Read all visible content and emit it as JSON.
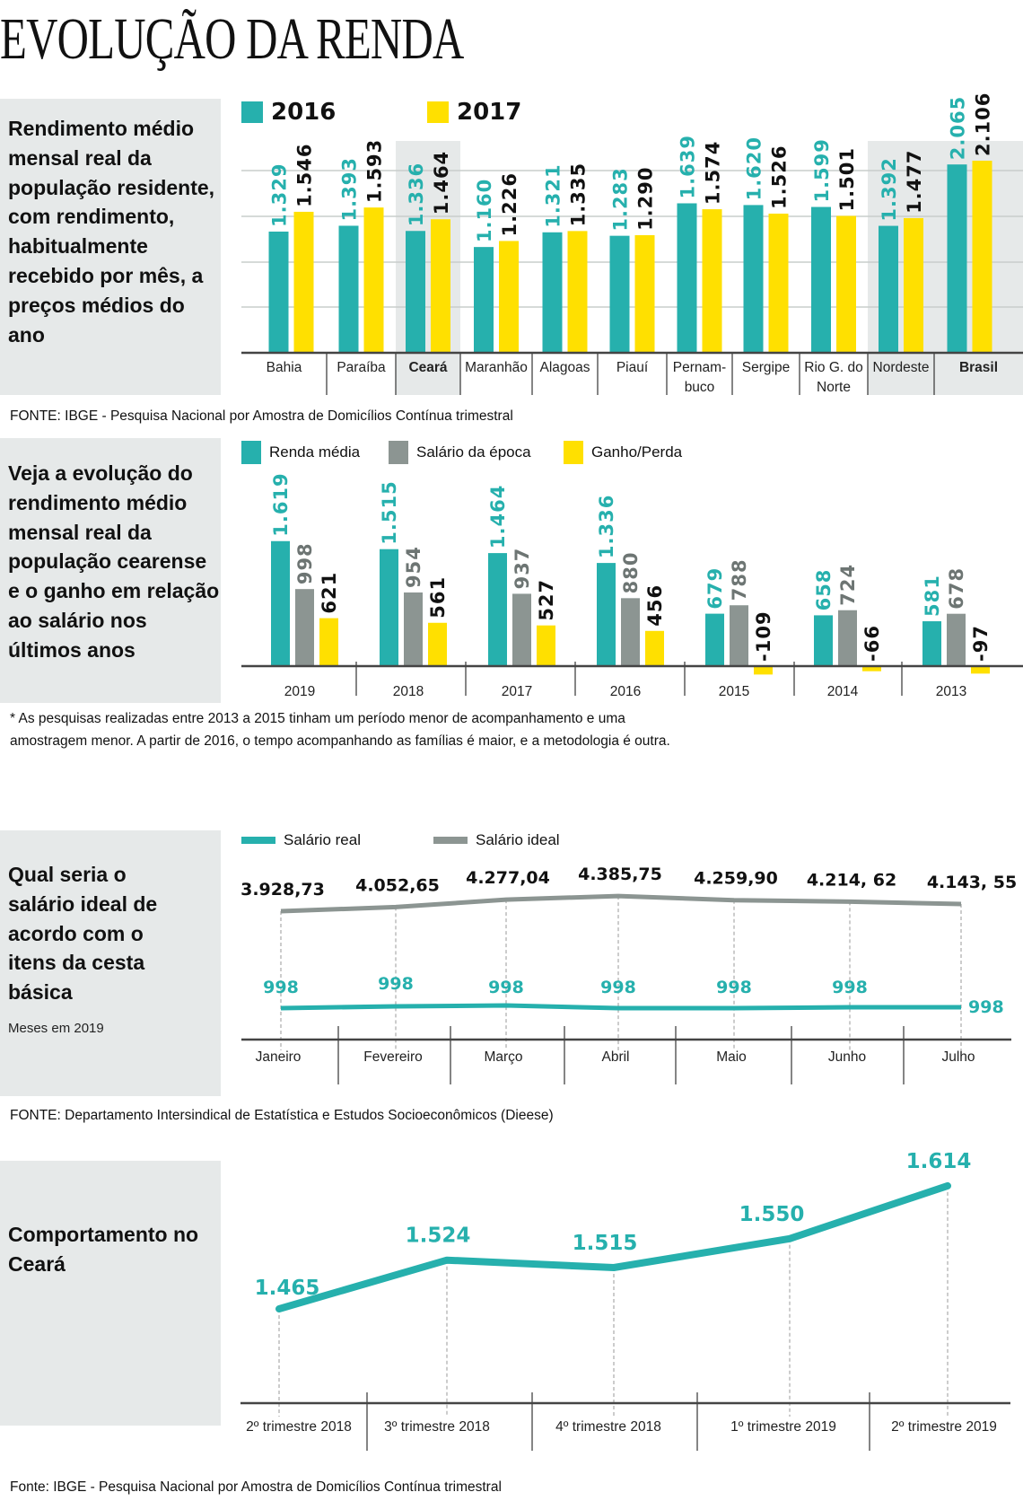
{
  "title": "EVOLUÇÃO DA RENDA",
  "colors": {
    "teal": "#26b0ad",
    "yellow": "#ffe000",
    "gray": "#8c9592",
    "panel": "#e6e9e9",
    "highlight": "#e6e9e9"
  },
  "section1": {
    "description": "Rendimento médio mensal real da população residente, com rendimento, habitualmente recebido por mês, a preços médios do ano",
    "source": "FONTE: IBGE - Pesquisa Nacional por Amostra de Domicílios Contínua trimestral"
  },
  "section2": {
    "description": "Veja a evolução do rendimento médio mensal real da população cearense e o ganho em relação ao salário nos últimos anos",
    "footnote_line1": "* As pesquisas realizadas entre 2013 a 2015 tinham um período menor de acompanhamento e uma",
    "footnote_line2": "amostragem menor. A partir de 2016, o tempo acompanhando as famílias é maior, e a metodologia é outra."
  },
  "section3": {
    "description": "Qual seria o salário ideal de acordo com o itens da cesta básica",
    "subtitle": "Meses em 2019",
    "source": "FONTE: Departamento Intersindical de Estatística e Estudos Socioeconômicos (Dieese)"
  },
  "section4": {
    "description": "Comportamento no Ceará",
    "source": "Fonte: IBGE - Pesquisa Nacional por Amostra de Domicílios Contínua trimestral"
  },
  "chart_data": [
    {
      "type": "bar",
      "categories": [
        "Bahia",
        "Paraíba",
        "Ceará",
        "Maranhão",
        "Alagoas",
        "Piauí",
        "Pernam-\nbuco",
        "Sergipe",
        "Rio G. do\nNorte",
        "Nordeste",
        "Brasil"
      ],
      "highlighted": [
        "Ceará",
        "Nordeste",
        "Brasil"
      ],
      "bold_categories": [
        "Ceará",
        "Brasil"
      ],
      "series": [
        {
          "name": "2016",
          "color": "#26b0ad",
          "values": [
            1329,
            1393,
            1336,
            1160,
            1321,
            1283,
            1639,
            1620,
            1599,
            1392,
            2065
          ]
        },
        {
          "name": "2017",
          "color": "#ffe000",
          "values": [
            1546,
            1593,
            1464,
            1226,
            1335,
            1290,
            1574,
            1526,
            1501,
            1477,
            2106
          ]
        }
      ],
      "legend": "top-left",
      "grid": true,
      "ylim": [
        0,
        2100
      ]
    },
    {
      "type": "bar",
      "categories": [
        "2019",
        "2018",
        "2017",
        "2016",
        "2015",
        "2014",
        "2013"
      ],
      "series": [
        {
          "name": "Renda média",
          "color": "#26b0ad",
          "label_color": "#26b0ad",
          "values": [
            1619,
            1515,
            1464,
            1336,
            679,
            658,
            581
          ]
        },
        {
          "name": "Salário da época",
          "color": "#8c9592",
          "label_color": "#6d7573",
          "values": [
            998,
            954,
            937,
            880,
            788,
            724,
            678
          ]
        },
        {
          "name": "Ganho/Perda",
          "color": "#ffe000",
          "label_color": "#111111",
          "values": [
            621,
            561,
            527,
            456,
            -109,
            -66,
            -97
          ]
        }
      ],
      "legend": "top-left",
      "grid": false
    },
    {
      "type": "line",
      "categories": [
        "Janeiro",
        "Fevereiro",
        "Março",
        "Abril",
        "Maio",
        "Junho",
        "Julho"
      ],
      "series": [
        {
          "name": "Salário real",
          "color": "#26b0ad",
          "values": [
            998,
            998,
            998,
            998,
            998,
            998,
            998
          ],
          "labels": [
            "998",
            "998",
            "998",
            "998",
            "998",
            "998",
            "998"
          ]
        },
        {
          "name": "Salário ideal",
          "color": "#8c9592",
          "values": [
            3928.73,
            4052.65,
            4277.04,
            4385.75,
            4259.9,
            4214.62,
            4143.55
          ],
          "labels": [
            "3.928,73",
            "4.052,65",
            "4.277,04",
            "4.385,75",
            "4.259,90",
            "4.214, 62",
            "4.143, 55"
          ]
        }
      ],
      "legend": "top-left",
      "grid": false
    },
    {
      "type": "line",
      "categories": [
        "2º trimestre 2018",
        "3º trimestre 2018",
        "4º trimestre 2018",
        "1º trimestre 2019",
        "2º trimestre 2019"
      ],
      "series": [
        {
          "color": "#26b0ad",
          "values": [
            1465,
            1524,
            1515,
            1550,
            1614
          ],
          "labels": [
            "1.465",
            "1.524",
            "1.515",
            "1.550",
            "1.614"
          ]
        }
      ],
      "grid": false
    }
  ]
}
